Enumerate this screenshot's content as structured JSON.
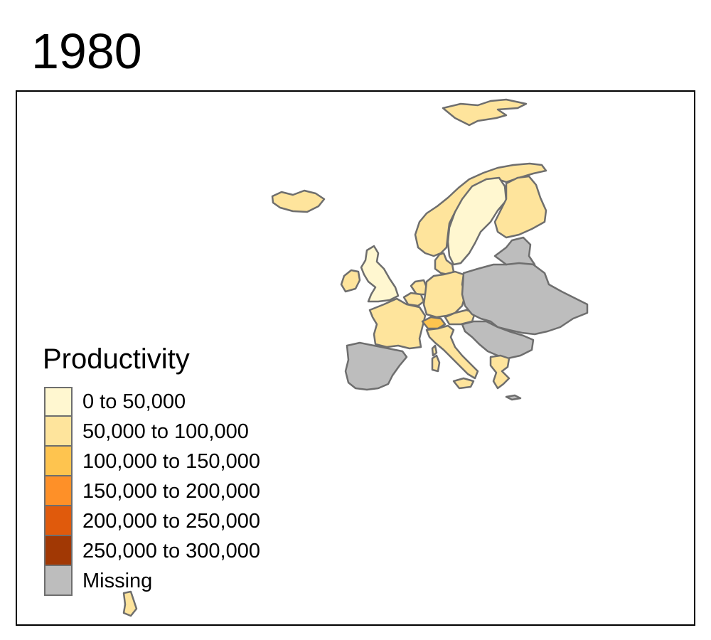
{
  "title": "1980",
  "legend": {
    "title": "Productivity",
    "items": [
      {
        "label": "0 to 50,000",
        "color": "#fff7d0"
      },
      {
        "label": "50,000 to 100,000",
        "color": "#fee49c"
      },
      {
        "label": "100,000 to 150,000",
        "color": "#fec44f"
      },
      {
        "label": "150,000 to 200,000",
        "color": "#fe9028"
      },
      {
        "label": "200,000 to 250,000",
        "color": "#e05a0c"
      },
      {
        "label": "250,000 to 300,000",
        "color": "#a13804"
      },
      {
        "label": "Missing",
        "color": "#bdbdbd"
      }
    ]
  },
  "border_color": "#6e6e6e",
  "regions": [
    {
      "name": "svalbard",
      "class": "50,000 to 100,000"
    },
    {
      "name": "iceland",
      "class": "50,000 to 100,000"
    },
    {
      "name": "norway",
      "class": "50,000 to 100,000"
    },
    {
      "name": "sweden",
      "class": "0 to 50,000"
    },
    {
      "name": "finland",
      "class": "50,000 to 100,000"
    },
    {
      "name": "denmark",
      "class": "50,000 to 100,000"
    },
    {
      "name": "united-kingdom",
      "class": "0 to 50,000"
    },
    {
      "name": "ireland",
      "class": "50,000 to 100,000"
    },
    {
      "name": "netherlands",
      "class": "50,000 to 100,000"
    },
    {
      "name": "belgium",
      "class": "50,000 to 100,000"
    },
    {
      "name": "luxembourg",
      "class": "50,000 to 100,000"
    },
    {
      "name": "germany",
      "class": "50,000 to 100,000"
    },
    {
      "name": "france",
      "class": "50,000 to 100,000"
    },
    {
      "name": "switzerland",
      "class": "100,000 to 150,000"
    },
    {
      "name": "austria",
      "class": "50,000 to 100,000"
    },
    {
      "name": "italy",
      "class": "50,000 to 100,000"
    },
    {
      "name": "sardinia",
      "class": "50,000 to 100,000"
    },
    {
      "name": "sicily",
      "class": "50,000 to 100,000"
    },
    {
      "name": "corsica",
      "class": "50,000 to 100,000"
    },
    {
      "name": "greece",
      "class": "50,000 to 100,000"
    },
    {
      "name": "crete",
      "class": "Missing"
    },
    {
      "name": "spain-portugal",
      "class": "Missing"
    },
    {
      "name": "eastern-europe",
      "class": "Missing"
    },
    {
      "name": "baltics",
      "class": "Missing"
    },
    {
      "name": "balkans",
      "class": "Missing"
    },
    {
      "name": "overseas-territory",
      "class": "50,000 to 100,000"
    }
  ]
}
